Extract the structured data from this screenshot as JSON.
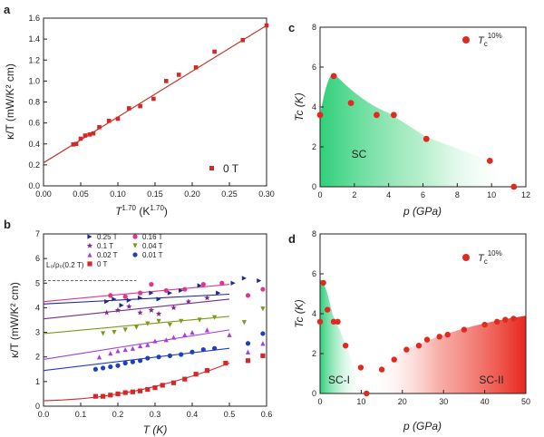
{
  "panels": {
    "a": "a",
    "b": "b",
    "c": "c",
    "d": "d"
  },
  "chart_data": [
    {
      "id": "a",
      "type": "scatter",
      "xlabel_main": "T",
      "xlabel_sup": "1.70",
      "xlabel_unit": " (K",
      "xlabel_unit_sup": "1.70",
      "xlabel_close": ")",
      "ylabel": "κ/T (mW/K² cm)",
      "xlim": [
        0,
        0.3
      ],
      "ylim": [
        0,
        1.6
      ],
      "xticks": [
        0.0,
        0.05,
        0.1,
        0.15,
        0.2,
        0.25,
        0.3
      ],
      "xtick_labels": [
        "0.00",
        "0.05",
        "0.10",
        "0.15",
        "0.20",
        "0.25",
        "0.30"
      ],
      "yticks": [
        0,
        0.2,
        0.4,
        0.6,
        0.8,
        1.0,
        1.2,
        1.4,
        1.6
      ],
      "ytick_labels": [
        "0.0",
        "0.2",
        "0.4",
        "0.6",
        "0.8",
        "1.0",
        "1.2",
        "1.4",
        "1.6"
      ],
      "legend": "0 T",
      "color": "#d62728",
      "fit": {
        "x0": 0,
        "y0": 0.22,
        "x1": 0.3,
        "y1": 1.53
      },
      "x": [
        0.04,
        0.044,
        0.05,
        0.056,
        0.062,
        0.067,
        0.075,
        0.088,
        0.1,
        0.115,
        0.13,
        0.148,
        0.165,
        0.182,
        0.205,
        0.23,
        0.268,
        0.3
      ],
      "y": [
        0.395,
        0.4,
        0.45,
        0.48,
        0.49,
        0.5,
        0.56,
        0.62,
        0.64,
        0.74,
        0.76,
        0.83,
        1.0,
        1.06,
        1.13,
        1.28,
        1.39,
        1.53
      ]
    },
    {
      "id": "b",
      "type": "scatter",
      "xlabel": "T (K)",
      "ylabel": "κ/T (mW/K² cm)",
      "xlim": [
        0,
        0.6
      ],
      "ylim": [
        0,
        7
      ],
      "xticks": [
        0.0,
        0.1,
        0.2,
        0.3,
        0.4,
        0.5,
        0.6
      ],
      "xtick_labels": [
        "0.0",
        "0.1",
        "0.2",
        "0.3",
        "0.4",
        "0.5",
        "0.6"
      ],
      "yticks": [
        0,
        1,
        2,
        3,
        4,
        5,
        6,
        7
      ],
      "ytick_labels": [
        "0",
        "1",
        "2",
        "3",
        "4",
        "5",
        "6",
        "7"
      ],
      "ref_label": "L₀/ρ₀(0.2 T)",
      "ref_y": 5.1,
      "series": [
        {
          "name": "0.25 T",
          "marker": "triangle-right",
          "color": "#1f2a8c",
          "fit": [
            4.15,
            4.55
          ],
          "x": [
            0.17,
            0.19,
            0.21,
            0.23,
            0.26,
            0.29,
            0.31,
            0.34,
            0.37,
            0.42,
            0.47,
            0.51,
            0.54,
            0.58
          ],
          "y": [
            4.25,
            4.35,
            4.1,
            4.3,
            4.4,
            4.6,
            4.35,
            4.6,
            4.7,
            4.9,
            4.6,
            5.0,
            5.2,
            5.1
          ]
        },
        {
          "name": "0.16 T",
          "marker": "circle",
          "color": "#e0368a",
          "fit": [
            4.25,
            4.95
          ],
          "x": [
            0.18,
            0.22,
            0.26,
            0.29,
            0.33,
            0.38,
            0.43,
            0.48,
            0.55,
            0.59
          ],
          "y": [
            4.5,
            4.45,
            4.6,
            4.95,
            4.7,
            4.75,
            4.95,
            5.0,
            4.5,
            4.75
          ]
        },
        {
          "name": "0.1 T",
          "marker": "star",
          "color": "#7b2d8e",
          "fit": [
            3.55,
            4.35
          ],
          "x": [
            0.17,
            0.2,
            0.23,
            0.26,
            0.29,
            0.31,
            0.35,
            0.39,
            0.44
          ],
          "y": [
            3.8,
            3.9,
            4.05,
            3.8,
            3.9,
            3.75,
            4.0,
            4.25,
            4.4
          ]
        },
        {
          "name": "0.04 T",
          "marker": "triangle-down",
          "color": "#7a9a1a",
          "fit": [
            2.95,
            3.65
          ],
          "x": [
            0.16,
            0.19,
            0.22,
            0.25,
            0.28,
            0.31,
            0.34,
            0.37,
            0.42,
            0.46,
            0.54,
            0.59
          ],
          "y": [
            2.95,
            3.0,
            3.1,
            3.2,
            3.35,
            3.45,
            3.3,
            3.45,
            3.5,
            3.6,
            3.4,
            3.95
          ]
        },
        {
          "name": "0.02 T",
          "marker": "triangle-up",
          "color": "#a040e0",
          "fit": [
            1.9,
            3.1
          ],
          "x": [
            0.15,
            0.18,
            0.2,
            0.22,
            0.24,
            0.26,
            0.28,
            0.3,
            0.33,
            0.35,
            0.38,
            0.4,
            0.44,
            0.5,
            0.55,
            0.59
          ],
          "y": [
            2.0,
            2.15,
            2.25,
            2.3,
            2.35,
            2.45,
            2.5,
            2.65,
            2.7,
            2.8,
            2.9,
            3.0,
            3.1,
            2.9,
            2.2,
            2.55
          ]
        },
        {
          "name": "0.01 T",
          "marker": "circle",
          "color": "#1f3fbf",
          "fit": [
            1.45,
            2.35
          ],
          "x": [
            0.14,
            0.16,
            0.18,
            0.2,
            0.22,
            0.24,
            0.26,
            0.28,
            0.31,
            0.34,
            0.37,
            0.4,
            0.43,
            0.46,
            0.55,
            0.59
          ],
          "y": [
            1.5,
            1.55,
            1.6,
            1.65,
            1.75,
            1.8,
            1.85,
            1.95,
            2.0,
            2.05,
            2.1,
            2.2,
            2.3,
            2.35,
            2.55,
            2.95
          ]
        },
        {
          "name": "0 T",
          "marker": "square",
          "color": "#d62728",
          "fit": null,
          "x": [
            0.14,
            0.16,
            0.18,
            0.2,
            0.22,
            0.24,
            0.26,
            0.28,
            0.3,
            0.32,
            0.35,
            0.38,
            0.41,
            0.44,
            0.49,
            0.55,
            0.59
          ],
          "y": [
            0.4,
            0.4,
            0.45,
            0.5,
            0.55,
            0.58,
            0.62,
            0.68,
            0.75,
            0.85,
            0.95,
            1.1,
            1.3,
            1.45,
            1.75,
            1.85,
            2.05
          ]
        }
      ],
      "fit0": {
        "x": [
          0,
          0.05,
          0.1,
          0.15,
          0.2,
          0.25,
          0.3,
          0.35,
          0.4,
          0.45,
          0.5
        ],
        "y": [
          0.22,
          0.25,
          0.3,
          0.38,
          0.5,
          0.63,
          0.8,
          1.0,
          1.22,
          1.47,
          1.75
        ]
      }
    },
    {
      "id": "c",
      "type": "scatter",
      "xlabel": "p (GPa)",
      "ylabel": "Tc (K)",
      "xlim": [
        0,
        12
      ],
      "ylim": [
        0,
        8
      ],
      "xticks": [
        0,
        2,
        4,
        6,
        8,
        10,
        12
      ],
      "xtick_labels": [
        "0",
        "2",
        "4",
        "6",
        "8",
        "10",
        "12"
      ],
      "yticks": [
        0,
        2,
        4,
        6,
        8
      ],
      "ytick_labels": [
        "0",
        "2",
        "4",
        "6",
        "8"
      ],
      "legend_main": "T",
      "legend_sub": "c",
      "legend_sup": "10%",
      "region_label": "SC",
      "x": [
        0.0,
        0.8,
        1.8,
        3.3,
        4.3,
        6.2,
        9.9,
        11.3
      ],
      "y": [
        3.6,
        5.55,
        4.2,
        3.6,
        3.6,
        2.4,
        1.3,
        0.0
      ]
    },
    {
      "id": "d",
      "type": "scatter",
      "xlabel": "p (GPa)",
      "ylabel": "Tc (K)",
      "xlim": [
        0,
        50
      ],
      "ylim": [
        0,
        8
      ],
      "xticks": [
        0,
        10,
        20,
        30,
        40,
        50
      ],
      "xtick_labels": [
        "0",
        "10",
        "20",
        "30",
        "40",
        "50"
      ],
      "yticks": [
        0,
        2,
        4,
        6,
        8
      ],
      "ytick_labels": [
        "0",
        "2",
        "4",
        "6",
        "8"
      ],
      "legend_main": "T",
      "legend_sub": "c",
      "legend_sup": "10%",
      "region_labels": [
        "SC-I",
        "SC-II"
      ],
      "x": [
        0.0,
        0.8,
        1.8,
        3.3,
        4.3,
        6.2,
        9.9,
        11.3,
        15.0,
        18.0,
        21.0,
        24.0,
        26.0,
        29.0,
        31.0,
        35.0,
        40.0,
        43.0,
        45.0,
        47.0
      ],
      "y": [
        3.6,
        5.55,
        4.2,
        3.6,
        3.6,
        2.4,
        1.3,
        0.0,
        1.2,
        1.7,
        2.2,
        2.4,
        2.7,
        2.85,
        2.95,
        3.2,
        3.45,
        3.6,
        3.7,
        3.75
      ]
    }
  ]
}
